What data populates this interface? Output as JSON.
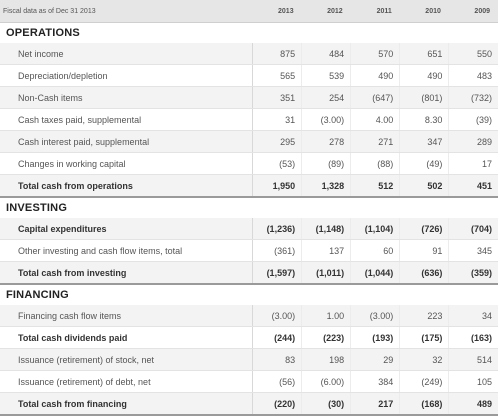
{
  "header": {
    "label": "Fiscal data as of Dec 31 2013",
    "years": [
      "2013",
      "2012",
      "2011",
      "2010",
      "2009"
    ]
  },
  "sections": [
    {
      "title": "OPERATIONS",
      "rows": [
        {
          "label": "Net income",
          "values": [
            "875",
            "484",
            "570",
            "651",
            "550"
          ],
          "bold": false
        },
        {
          "label": "Depreciation/depletion",
          "values": [
            "565",
            "539",
            "490",
            "490",
            "483"
          ],
          "bold": false
        },
        {
          "label": "Non-Cash items",
          "values": [
            "351",
            "254",
            "(647)",
            "(801)",
            "(732)"
          ],
          "bold": false
        },
        {
          "label": "Cash taxes paid, supplemental",
          "values": [
            "31",
            "(3.00)",
            "4.00",
            "8.30",
            "(39)"
          ],
          "bold": false
        },
        {
          "label": "Cash interest paid, supplemental",
          "values": [
            "295",
            "278",
            "271",
            "347",
            "289"
          ],
          "bold": false
        },
        {
          "label": "Changes in working capital",
          "values": [
            "(53)",
            "(89)",
            "(88)",
            "(49)",
            "17"
          ],
          "bold": false
        },
        {
          "label": "Total cash from operations",
          "values": [
            "1,950",
            "1,328",
            "512",
            "502",
            "451"
          ],
          "bold": true
        }
      ]
    },
    {
      "title": "INVESTING",
      "rows": [
        {
          "label": "Capital expenditures",
          "values": [
            "(1,236)",
            "(1,148)",
            "(1,104)",
            "(726)",
            "(704)"
          ],
          "bold": true
        },
        {
          "label": "Other investing and cash flow items, total",
          "values": [
            "(361)",
            "137",
            "60",
            "91",
            "345"
          ],
          "bold": false
        },
        {
          "label": "Total cash from investing",
          "values": [
            "(1,597)",
            "(1,011)",
            "(1,044)",
            "(636)",
            "(359)"
          ],
          "bold": true
        }
      ]
    },
    {
      "title": "FINANCING",
      "rows": [
        {
          "label": "Financing cash flow items",
          "values": [
            "(3.00)",
            "1.00",
            "(3.00)",
            "223",
            "34"
          ],
          "bold": false
        },
        {
          "label": "Total cash dividends paid",
          "values": [
            "(244)",
            "(223)",
            "(193)",
            "(175)",
            "(163)"
          ],
          "bold": true
        },
        {
          "label": "Issuance (retirement) of stock, net",
          "values": [
            "83",
            "198",
            "29",
            "32",
            "514"
          ],
          "bold": false
        },
        {
          "label": "Issuance (retirement) of debt, net",
          "values": [
            "(56)",
            "(6.00)",
            "384",
            "(249)",
            "105"
          ],
          "bold": false
        },
        {
          "label": "Total cash from financing",
          "values": [
            "(220)",
            "(30)",
            "217",
            "(168)",
            "489"
          ],
          "bold": true
        }
      ]
    }
  ]
}
